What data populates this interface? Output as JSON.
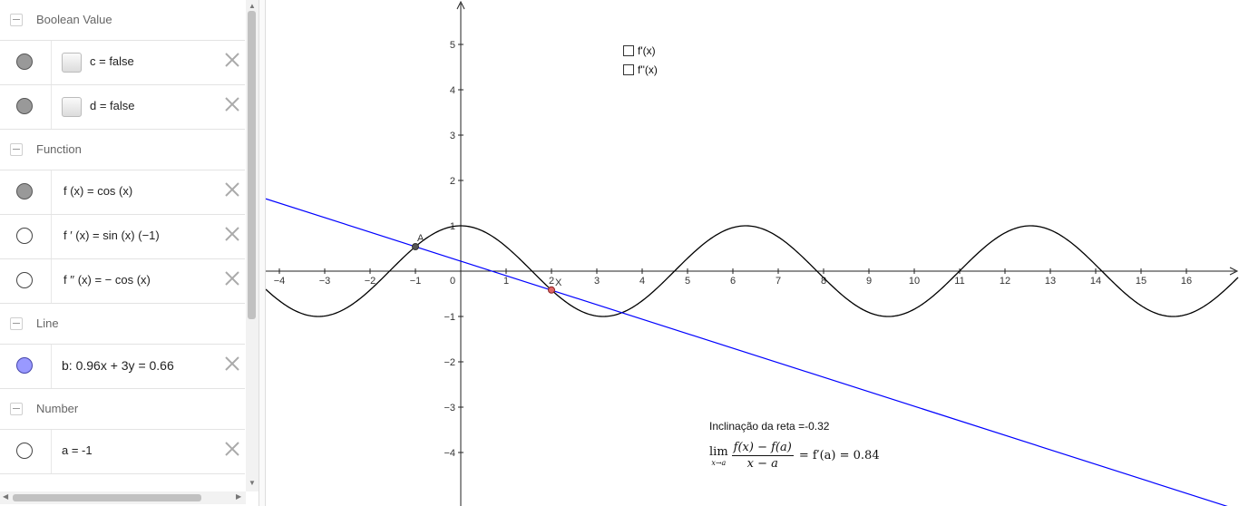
{
  "algebra": {
    "groups": [
      {
        "label": "Boolean Value"
      },
      {
        "label": "Function"
      },
      {
        "label": "Line"
      },
      {
        "label": "Number"
      }
    ],
    "rows": [
      {
        "expr": "c = false"
      },
      {
        "expr": "d = false"
      },
      {
        "expr": "f (x)  =  cos (x)"
      },
      {
        "expr": "f ′ (x)  =  sin (x)  (−1)"
      },
      {
        "expr": "f ′′ (x)  =  − cos (x)"
      },
      {
        "expr": "b: 0.96x + 3y = 0.66"
      },
      {
        "expr": "a = -1"
      }
    ]
  },
  "graphics": {
    "checkboxes": [
      {
        "label": "f'(x)"
      },
      {
        "label": "f''(x)"
      }
    ],
    "point_labels": {
      "A": "A",
      "X": "X"
    },
    "inclination_text": "Inclinação da reta =-0.32",
    "limit": {
      "lim": "lim",
      "sub": "x→a",
      "numerator": "f(x) − f(a)",
      "denominator": "x − a",
      "result": "= f′(a) = 0.84"
    },
    "x_ticks": [
      "-4",
      "-3",
      "-2",
      "-1",
      "0",
      "1",
      "2",
      "3",
      "4",
      "5",
      "6",
      "7",
      "8",
      "9",
      "10",
      "11",
      "12",
      "13",
      "14",
      "15",
      "16"
    ],
    "y_ticks": [
      "5",
      "4",
      "3",
      "2",
      "1",
      "−1",
      "−2",
      "−3",
      "−4"
    ],
    "colors": {
      "curve": "#000000",
      "line": "#0000ff",
      "pointA": "#333333",
      "pointX": "#cc3333"
    }
  }
}
